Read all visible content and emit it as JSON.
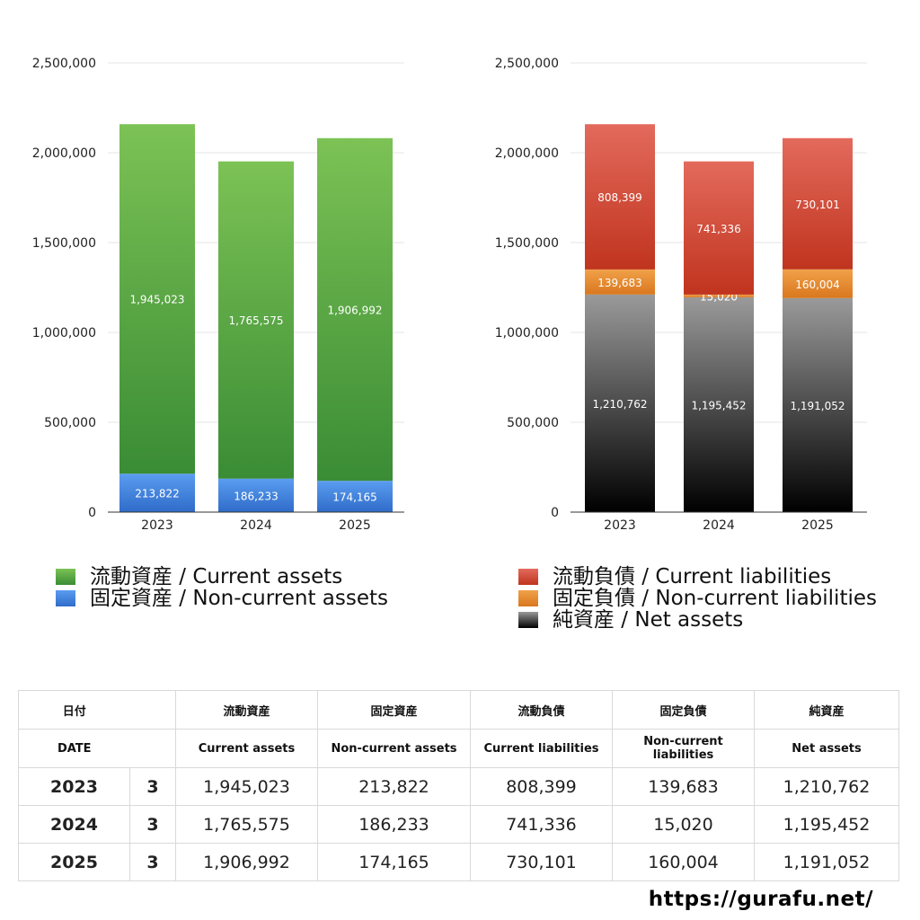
{
  "chart_data": [
    {
      "type": "bar",
      "stacked": true,
      "categories": [
        "2023",
        "2024",
        "2025"
      ],
      "y_ticks": [
        "0",
        "500,000",
        "1,000,000",
        "1,500,000",
        "2,000,000",
        "2,500,000"
      ],
      "ylim": [
        0,
        2500000
      ],
      "grid": true,
      "legend_position": "bottom",
      "series": [
        {
          "name": "固定資産 / Non-current assets",
          "values": [
            213822,
            186233,
            174165
          ],
          "labels": [
            "213,822",
            "186,233",
            "174,165"
          ],
          "color_top": "#5a9df0",
          "color_bottom": "#2f6cc9"
        },
        {
          "name": "流動資産 / Current assets",
          "values": [
            1945023,
            1765575,
            1906992
          ],
          "labels": [
            "1,945,023",
            "1,765,575",
            "1,906,992"
          ],
          "color_top": "#7cc255",
          "color_bottom": "#3a8c35"
        }
      ]
    },
    {
      "type": "bar",
      "stacked": true,
      "categories": [
        "2023",
        "2024",
        "2025"
      ],
      "y_ticks": [
        "0",
        "500,000",
        "1,000,000",
        "1,500,000",
        "2,000,000",
        "2,500,000"
      ],
      "ylim": [
        0,
        2500000
      ],
      "grid": true,
      "legend_position": "bottom",
      "series": [
        {
          "name": "純資産 / Net assets",
          "values": [
            1210762,
            1195452,
            1191052
          ],
          "labels": [
            "1,210,762",
            "1,195,452",
            "1,191,052"
          ],
          "color_top": "#9a9a9a",
          "color_bottom": "#000000"
        },
        {
          "name": "固定負債 / Non-current liabilities",
          "values": [
            139683,
            15020,
            160004
          ],
          "labels": [
            "139,683",
            "15,020",
            "160,004"
          ],
          "color_top": "#f0a14a",
          "color_bottom": "#d9771e"
        },
        {
          "name": "流動負債 / Current liabilities",
          "values": [
            808399,
            741336,
            730101
          ],
          "labels": [
            "808,399",
            "741,336",
            "730,101"
          ],
          "color_top": "#e36a5c",
          "color_bottom": "#c0341e"
        }
      ]
    }
  ],
  "legend_left": [
    {
      "label": "流動資産 / Current assets",
      "swatch": "sw-current"
    },
    {
      "label": "固定資産 / Non-current assets",
      "swatch": "sw-noncur"
    }
  ],
  "legend_right": [
    {
      "label": "流動負債 / Current liabilities",
      "swatch": "sw-curliab"
    },
    {
      "label": "固定負債 / Non-current liabilities",
      "swatch": "sw-ncliab"
    },
    {
      "label": "純資産 / Net assets",
      "swatch": "sw-net"
    }
  ],
  "table": {
    "header_jp": [
      "日付",
      "流動資産",
      "固定資産",
      "流動負債",
      "固定負債",
      "純資産"
    ],
    "header_en": [
      "DATE",
      "Current assets",
      "Non-current assets",
      "Current liabilities",
      "Non-current liabilities",
      "Net assets"
    ],
    "rows": [
      {
        "year": "2023",
        "count": "3",
        "values": [
          "1,945,023",
          "213,822",
          "808,399",
          "139,683",
          "1,210,762"
        ]
      },
      {
        "year": "2024",
        "count": "3",
        "values": [
          "1,765,575",
          "186,233",
          "741,336",
          "15,020",
          "1,195,452"
        ]
      },
      {
        "year": "2025",
        "count": "3",
        "values": [
          "1,906,992",
          "174,165",
          "730,101",
          "160,004",
          "1,191,052"
        ]
      }
    ]
  },
  "site_url": "https://gurafu.net/"
}
